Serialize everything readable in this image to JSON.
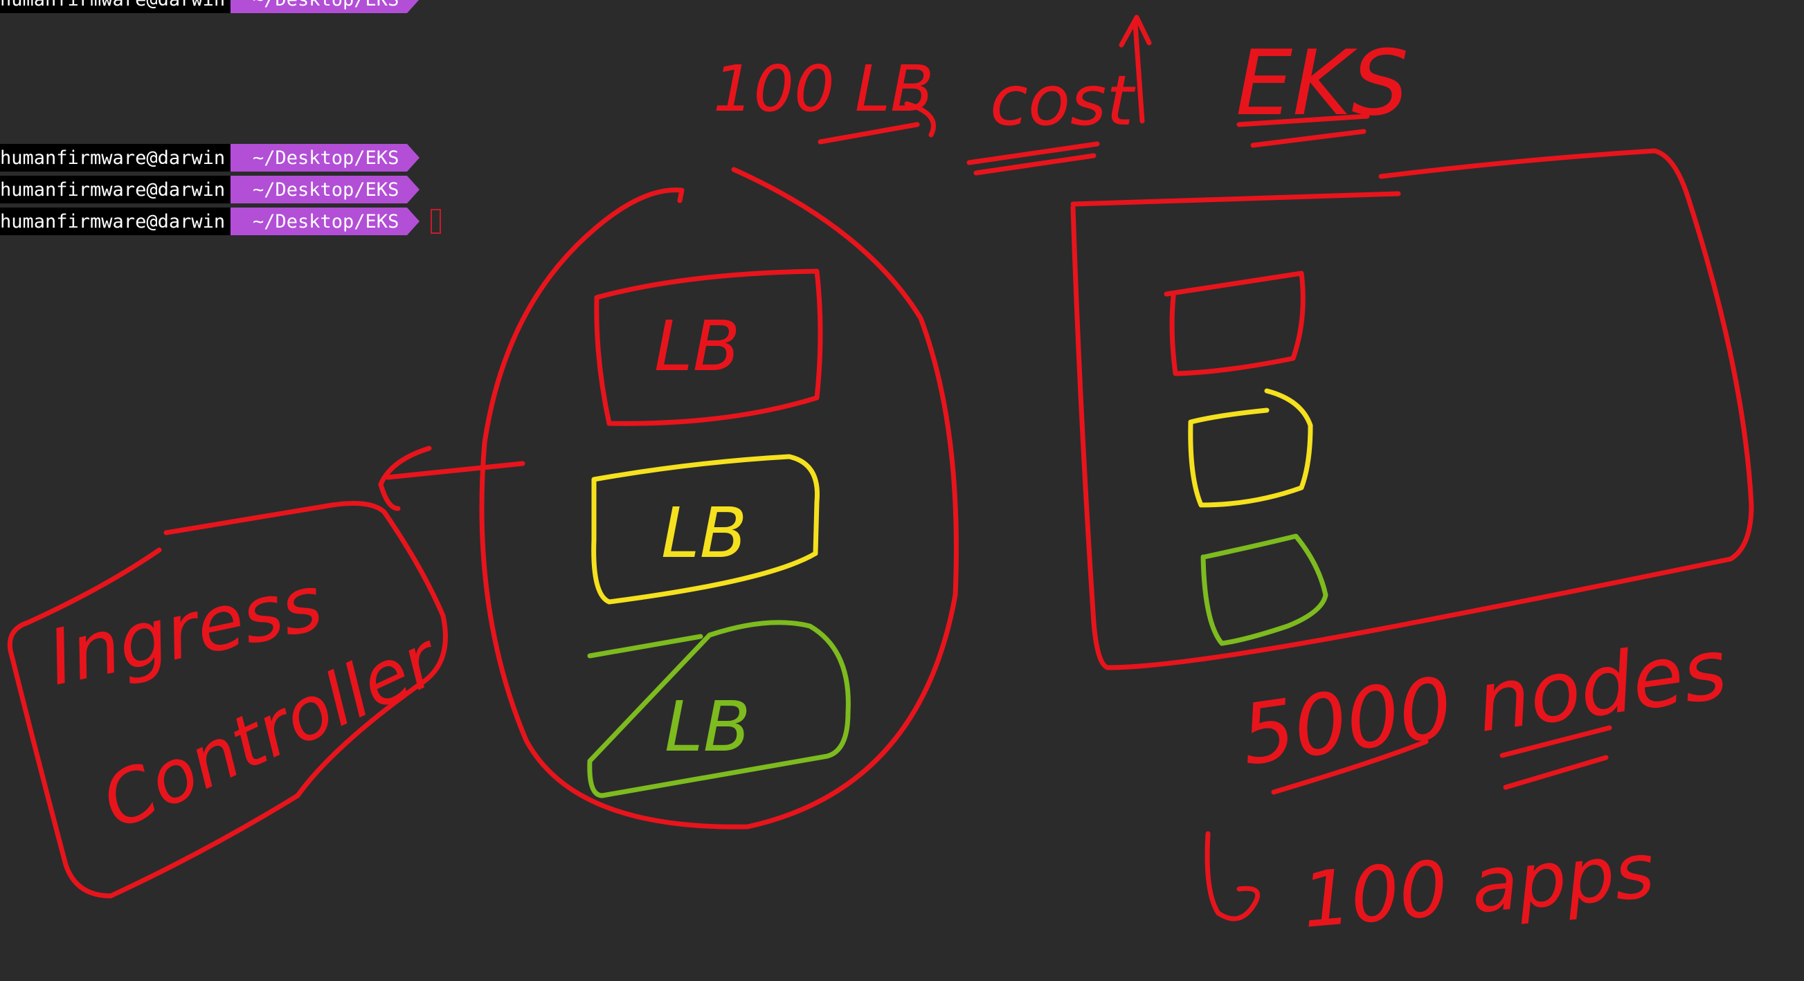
{
  "terminal": {
    "lines": [
      {
        "user": "humanfirmware@darwin",
        "path": "~/Desktop/EKS"
      },
      {
        "user": "humanfirmware@darwin",
        "path": "~/Desktop/EKS"
      },
      {
        "user": "humanfirmware@darwin",
        "path": "~/Desktop/EKS"
      },
      {
        "user": "humanfirmware@darwin",
        "path": "~/Desktop/EKS"
      }
    ]
  },
  "annotations": {
    "count_lb": "100 LB",
    "cost": "cost",
    "eks": "EKS",
    "lb_top": "LB",
    "lb_middle": "LB",
    "lb_bottom": "LB",
    "ingress_line1": "Ingress",
    "ingress_line2": "Controller",
    "nodes": "5000 nodes",
    "apps": "100 apps"
  },
  "colors": {
    "background": "#2b2b2b",
    "pen_red": "#e8141c",
    "pen_yellow": "#f5e11e",
    "pen_green": "#7dbb1f",
    "prompt_user_bg": "#000000",
    "prompt_path_bg": "#b24fd6"
  }
}
